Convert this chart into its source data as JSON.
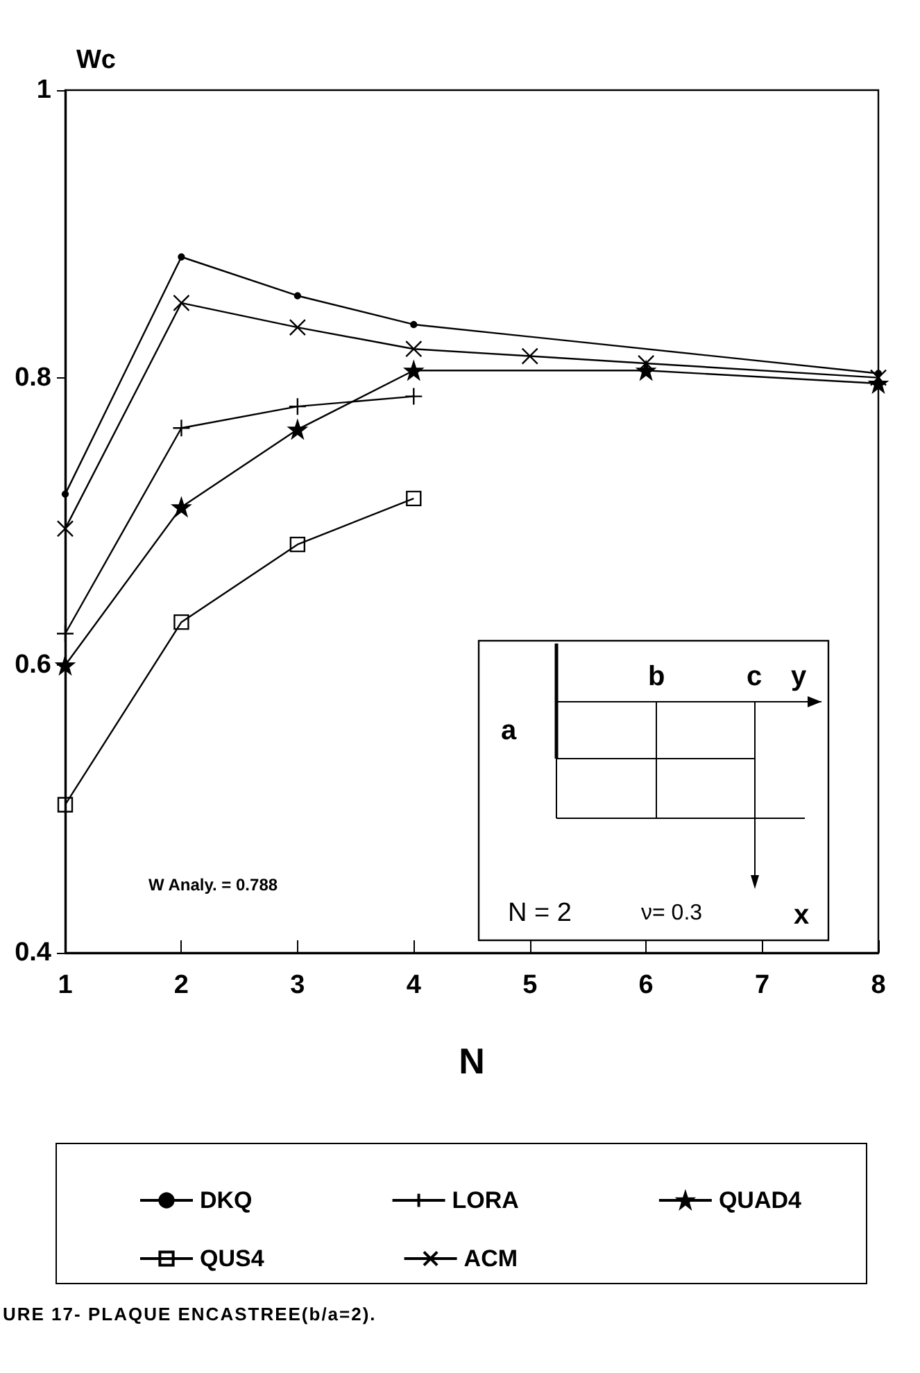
{
  "chart_data": {
    "type": "line",
    "ylabel": "Wc",
    "xlabel": "N",
    "xlim": [
      1,
      8
    ],
    "xticks": [
      1,
      2,
      3,
      4,
      5,
      6,
      7,
      8
    ],
    "ylim": [
      0.4,
      1
    ],
    "yticks": [
      0.4,
      0.6,
      0.8,
      1
    ],
    "grid": false,
    "legend": "bottom",
    "line_style": "solid",
    "series": [
      {
        "name": "DKQ",
        "color": "#000000",
        "marker": "circle",
        "x": [
          1,
          2,
          3,
          4,
          8
        ],
        "values": [
          0.719,
          0.884,
          0.857,
          0.837,
          0.803
        ]
      },
      {
        "name": "LORA",
        "color": "#000000",
        "marker": "plus",
        "x": [
          1,
          2,
          3,
          4
        ],
        "values": [
          0.622,
          0.765,
          0.78,
          0.787
        ]
      },
      {
        "name": "QUAD4",
        "color": "#000000",
        "marker": "star",
        "x": [
          1,
          2,
          3,
          4,
          6,
          8
        ],
        "values": [
          0.6,
          0.71,
          0.764,
          0.805,
          0.805,
          0.796
        ]
      },
      {
        "name": "QUS4",
        "color": "#000000",
        "marker": "square",
        "x": [
          1,
          2,
          3,
          4
        ],
        "values": [
          0.503,
          0.63,
          0.684,
          0.716
        ]
      },
      {
        "name": "ACM",
        "color": "#000000",
        "marker": "cross",
        "x": [
          1,
          2,
          3,
          4,
          5,
          6,
          8
        ],
        "values": [
          0.695,
          0.852,
          0.835,
          0.82,
          0.815,
          0.81,
          0.8
        ]
      }
    ],
    "annotations": [
      "W Analy. = 0.788",
      "a",
      "b",
      "c",
      "y",
      "x",
      "N = 2",
      "ν= 0.3",
      "URE 17- PLAQUE ENCASTREE(b/a=2)."
    ]
  }
}
